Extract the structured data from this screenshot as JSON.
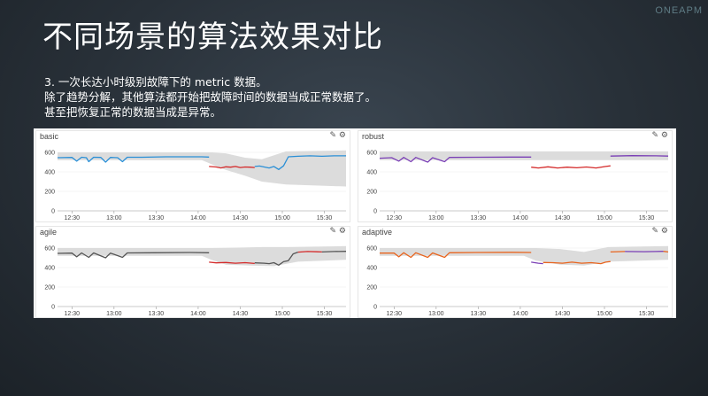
{
  "slide": {
    "title": "不同场景的算法效果对比",
    "logo": "ONEAPM",
    "lines": [
      "3. 一次长达小时级别故障下的 metric 数据。",
      "除了趋势分解，其他算法都开始把故障时间的数据当成正常数据了。",
      "甚至把恢复正常的数据当成是异常。"
    ]
  },
  "panel_icons": {
    "edit": "✎",
    "settings": "⚙"
  },
  "colors": {
    "normal_blue": "#2a8fd6",
    "normal_purple": "#7a3fb5",
    "normal_gray": "#555555",
    "normal_orange": "#e8641e",
    "anomaly": "#d42a2a",
    "band": "#d6d6d6"
  },
  "chart_data": [
    {
      "type": "line",
      "title": "basic",
      "x_ticks": [
        "12:30",
        "13:00",
        "13:30",
        "14:00",
        "14:30",
        "15:00",
        "15:30"
      ],
      "y_ticks": [
        "0",
        "200",
        "400",
        "600"
      ],
      "ylim": [
        0,
        700
      ],
      "segments": [
        {
          "color": "normal_blue",
          "points": [
            [
              0,
              545
            ],
            [
              6,
              548
            ],
            [
              8,
              510
            ],
            [
              10,
              550
            ],
            [
              12,
              545
            ],
            [
              13,
              505
            ],
            [
              15,
              550
            ],
            [
              18,
              548
            ],
            [
              20,
              500
            ],
            [
              22,
              548
            ],
            [
              25,
              545
            ],
            [
              27,
              505
            ],
            [
              29,
              550
            ],
            [
              35,
              550
            ],
            [
              45,
              555
            ],
            [
              55,
              555
            ],
            [
              60,
              555
            ],
            [
              63,
              552
            ]
          ]
        },
        {
          "color": "anomaly",
          "points": [
            [
              63,
              455
            ],
            [
              66,
              450
            ],
            [
              68,
              440
            ],
            [
              70,
              452
            ],
            [
              72,
              448
            ],
            [
              74,
              455
            ],
            [
              76,
              445
            ],
            [
              78,
              450
            ],
            [
              80,
              448
            ],
            [
              82,
              445
            ]
          ]
        },
        {
          "color": "normal_blue",
          "points": [
            [
              82,
              455
            ],
            [
              84,
              460
            ],
            [
              86,
              450
            ],
            [
              88,
              440
            ],
            [
              90,
              455
            ],
            [
              92,
              425
            ],
            [
              94,
              462
            ],
            [
              96,
              555
            ],
            [
              100,
              560
            ],
            [
              105,
              565
            ],
            [
              110,
              560
            ],
            [
              115,
              565
            ],
            [
              120,
              565
            ]
          ]
        }
      ],
      "band": {
        "upper": [
          [
            0,
            600
          ],
          [
            60,
            600
          ],
          [
            64,
            600
          ],
          [
            70,
            590
          ],
          [
            78,
            545
          ],
          [
            85,
            530
          ],
          [
            95,
            610
          ],
          [
            120,
            620
          ]
        ],
        "lower": [
          [
            0,
            520
          ],
          [
            60,
            520
          ],
          [
            64,
            480
          ],
          [
            70,
            420
          ],
          [
            78,
            360
          ],
          [
            85,
            300
          ],
          [
            95,
            270
          ],
          [
            120,
            250
          ]
        ]
      }
    },
    {
      "type": "line",
      "title": "robust",
      "x_ticks": [
        "12:30",
        "13:00",
        "13:30",
        "14:00",
        "14:30",
        "15:00",
        "15:30"
      ],
      "y_ticks": [
        "0",
        "200",
        "400",
        "600"
      ],
      "ylim": [
        0,
        700
      ],
      "segments": [
        {
          "color": "normal_purple",
          "points": [
            [
              0,
              540
            ],
            [
              5,
              545
            ],
            [
              8,
              510
            ],
            [
              10,
              548
            ],
            [
              13,
              505
            ],
            [
              15,
              548
            ],
            [
              20,
              500
            ],
            [
              22,
              545
            ],
            [
              27,
              505
            ],
            [
              29,
              548
            ],
            [
              40,
              550
            ],
            [
              55,
              552
            ],
            [
              63,
              552
            ]
          ]
        },
        {
          "color": "anomaly",
          "points": [
            [
              63,
              448
            ],
            [
              66,
              440
            ],
            [
              70,
              452
            ],
            [
              74,
              440
            ],
            [
              78,
              448
            ],
            [
              82,
              442
            ],
            [
              86,
              450
            ],
            [
              90,
              440
            ],
            [
              94,
              455
            ],
            [
              96,
              462
            ]
          ]
        },
        {
          "color": "normal_purple",
          "points": [
            [
              96,
              562
            ],
            [
              105,
              566
            ],
            [
              115,
              565
            ],
            [
              120,
              562
            ]
          ]
        }
      ],
      "band": {
        "upper": [
          [
            0,
            610
          ],
          [
            120,
            610
          ]
        ],
        "lower": [
          [
            0,
            520
          ],
          [
            120,
            520
          ]
        ]
      }
    },
    {
      "type": "line",
      "title": "agile",
      "x_ticks": [
        "12:30",
        "13:00",
        "13:30",
        "14:00",
        "14:30",
        "15:00",
        "15:30"
      ],
      "y_ticks": [
        "0",
        "200",
        "400",
        "600"
      ],
      "ylim": [
        0,
        700
      ],
      "segments": [
        {
          "color": "normal_gray",
          "points": [
            [
              0,
              545
            ],
            [
              6,
              548
            ],
            [
              8,
              510
            ],
            [
              10,
              550
            ],
            [
              13,
              505
            ],
            [
              15,
              550
            ],
            [
              20,
              500
            ],
            [
              22,
              548
            ],
            [
              27,
              505
            ],
            [
              29,
              550
            ],
            [
              40,
              552
            ],
            [
              55,
              555
            ],
            [
              63,
              552
            ]
          ]
        },
        {
          "color": "anomaly",
          "points": [
            [
              63,
              455
            ],
            [
              66,
              448
            ],
            [
              70,
              452
            ],
            [
              74,
              445
            ],
            [
              78,
              450
            ],
            [
              82,
              442
            ]
          ]
        },
        {
          "color": "normal_gray",
          "points": [
            [
              82,
              448
            ],
            [
              86,
              445
            ],
            [
              88,
              440
            ],
            [
              90,
              450
            ],
            [
              92,
              425
            ],
            [
              94,
              460
            ],
            [
              96,
              470
            ],
            [
              98,
              540
            ],
            [
              100,
              558
            ]
          ]
        },
        {
          "color": "anomaly",
          "points": [
            [
              100,
              558
            ],
            [
              104,
              565
            ],
            [
              108,
              562
            ],
            [
              110,
              560
            ]
          ]
        },
        {
          "color": "normal_gray",
          "points": [
            [
              110,
              560
            ],
            [
              115,
              565
            ],
            [
              120,
              566
            ]
          ]
        }
      ],
      "band": {
        "upper": [
          [
            0,
            600
          ],
          [
            60,
            600
          ],
          [
            64,
            600
          ],
          [
            75,
            605
          ],
          [
            85,
            610
          ],
          [
            95,
            610
          ],
          [
            120,
            620
          ]
        ],
        "lower": [
          [
            0,
            520
          ],
          [
            60,
            520
          ],
          [
            64,
            480
          ],
          [
            70,
            430
          ],
          [
            80,
            420
          ],
          [
            90,
            415
          ],
          [
            100,
            460
          ],
          [
            120,
            480
          ]
        ]
      }
    },
    {
      "type": "line",
      "title": "adaptive",
      "x_ticks": [
        "12:30",
        "13:00",
        "13:30",
        "14:00",
        "14:30",
        "15:00",
        "15:30"
      ],
      "y_ticks": [
        "0",
        "200",
        "400",
        "600"
      ],
      "ylim": [
        0,
        700
      ],
      "segments": [
        {
          "color": "normal_orange",
          "points": [
            [
              0,
              548
            ],
            [
              6,
              548
            ],
            [
              8,
              510
            ],
            [
              10,
              552
            ],
            [
              13,
              505
            ],
            [
              15,
              552
            ],
            [
              20,
              505
            ],
            [
              22,
              550
            ],
            [
              27,
              505
            ],
            [
              29,
              552
            ],
            [
              40,
              555
            ],
            [
              55,
              556
            ],
            [
              63,
              555
            ]
          ]
        },
        {
          "color": "normal_purple",
          "points": [
            [
              63,
              455
            ],
            [
              66,
              445
            ],
            [
              68,
              440
            ]
          ]
        },
        {
          "color": "normal_orange",
          "points": [
            [
              68,
              452
            ],
            [
              72,
              450
            ],
            [
              76,
              445
            ],
            [
              80,
              455
            ],
            [
              84,
              445
            ],
            [
              88,
              450
            ],
            [
              92,
              440
            ],
            [
              94,
              455
            ],
            [
              96,
              462
            ]
          ]
        },
        {
          "color": "normal_orange",
          "points": [
            [
              96,
              560
            ],
            [
              102,
              565
            ]
          ]
        },
        {
          "color": "normal_purple",
          "points": [
            [
              102,
              565
            ],
            [
              110,
              563
            ],
            [
              115,
              565
            ],
            [
              118,
              566
            ]
          ]
        },
        {
          "color": "normal_orange",
          "points": [
            [
              118,
              566
            ],
            [
              120,
              560
            ]
          ]
        }
      ],
      "band": {
        "upper": [
          [
            0,
            600
          ],
          [
            60,
            600
          ],
          [
            65,
            600
          ],
          [
            75,
            590
          ],
          [
            85,
            560
          ],
          [
            95,
            610
          ],
          [
            120,
            620
          ]
        ],
        "lower": [
          [
            0,
            520
          ],
          [
            60,
            520
          ],
          [
            65,
            470
          ],
          [
            75,
            430
          ],
          [
            85,
            420
          ],
          [
            95,
            460
          ],
          [
            120,
            480
          ]
        ]
      }
    }
  ]
}
